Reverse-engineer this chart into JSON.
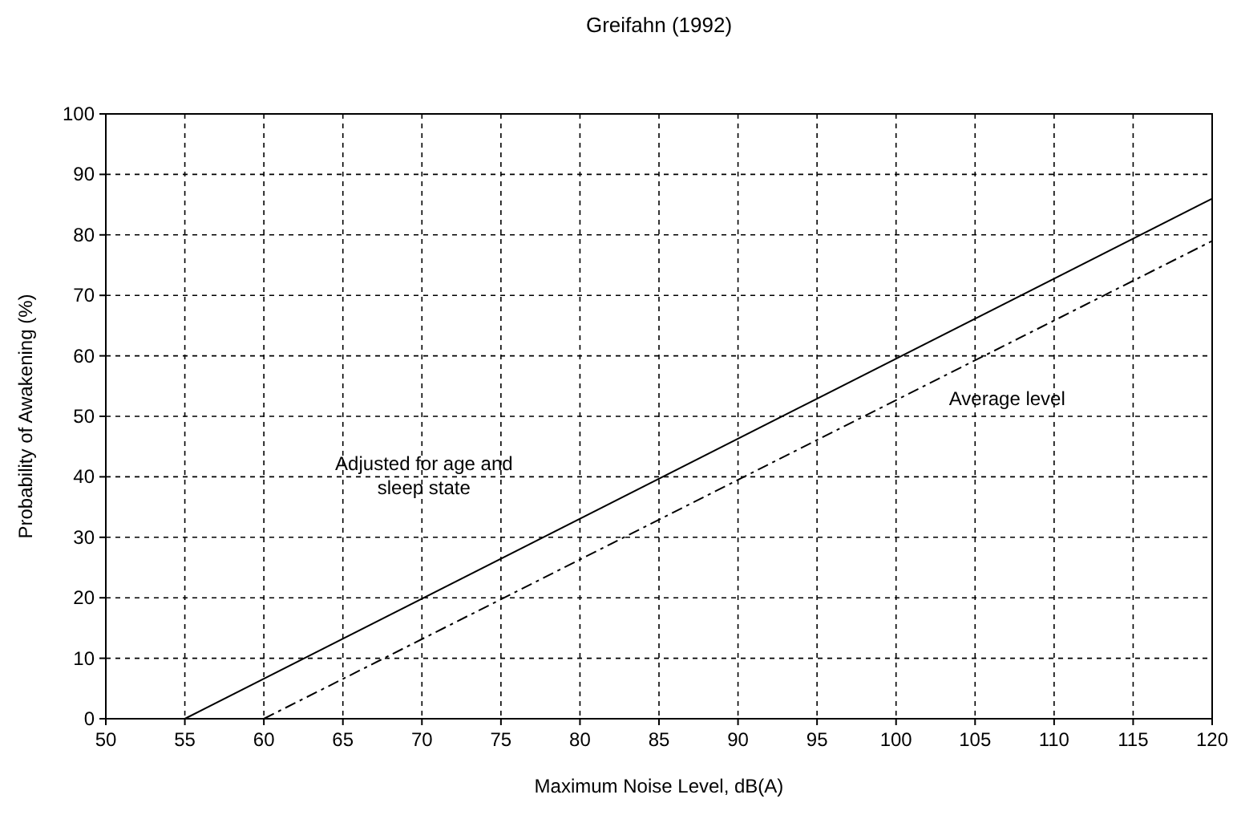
{
  "chart_data": {
    "type": "line",
    "title": "Greifahn (1992)",
    "xlabel": "Maximum Noise Level, dB(A)",
    "ylabel": "Probability of Awakening (%)",
    "xlim": [
      50,
      120
    ],
    "xticks": [
      50,
      55,
      60,
      65,
      70,
      75,
      80,
      85,
      90,
      95,
      100,
      105,
      110,
      115,
      120
    ],
    "ylim": [
      0,
      100
    ],
    "yticks": [
      0,
      10,
      20,
      30,
      40,
      50,
      60,
      70,
      80,
      90,
      100
    ],
    "grid": true,
    "marker": "none",
    "series": [
      {
        "name": "Adjusted for age and sleep state",
        "color": "#000000",
        "line_style": "solid",
        "x": [
          55,
          120
        ],
        "values": [
          0,
          86
        ]
      },
      {
        "name": "Average level",
        "color": "#000000",
        "line_style": "dashed",
        "x": [
          60,
          120
        ],
        "values": [
          0,
          79
        ]
      }
    ]
  }
}
